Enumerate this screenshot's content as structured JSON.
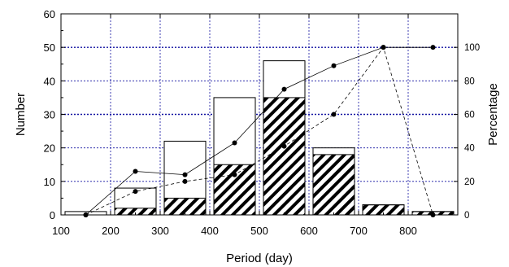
{
  "chart_data": {
    "type": "bar",
    "xlabel": "Period (day)",
    "ylabel_left": "Number",
    "ylabel_right": "Percentage",
    "x_range": [
      100,
      900
    ],
    "x_ticks": [
      100,
      200,
      300,
      400,
      500,
      600,
      700,
      800
    ],
    "y_left_range": [
      0,
      60
    ],
    "y_left_ticks": [
      0,
      10,
      20,
      30,
      40,
      50,
      60
    ],
    "y_right_range": [
      0,
      120
    ],
    "y_right_ticks": [
      0,
      20,
      40,
      60,
      80,
      100
    ],
    "grid": true,
    "bin_centers": [
      150,
      250,
      350,
      450,
      550,
      650,
      750,
      850
    ],
    "bin_width": 100,
    "series": [
      {
        "values": [
          1,
          8,
          22,
          35,
          46,
          20,
          3,
          1
        ],
        "fill": "open",
        "axis": "left"
      },
      {
        "values": [
          0,
          2,
          5,
          15,
          35,
          18,
          3,
          1
        ],
        "fill": "hatched",
        "axis": "left"
      },
      {
        "values": [
          0,
          26,
          24,
          43,
          75,
          89,
          100,
          100
        ],
        "style": "solid-line-dots",
        "axis": "right"
      },
      {
        "values": [
          0,
          14,
          20,
          24,
          41,
          60,
          100,
          0
        ],
        "style": "dashed-line-dots",
        "axis": "right"
      }
    ],
    "colors": {
      "grid": "#1010a0",
      "bar_stroke": "#000000",
      "hatch": "#000000"
    }
  }
}
